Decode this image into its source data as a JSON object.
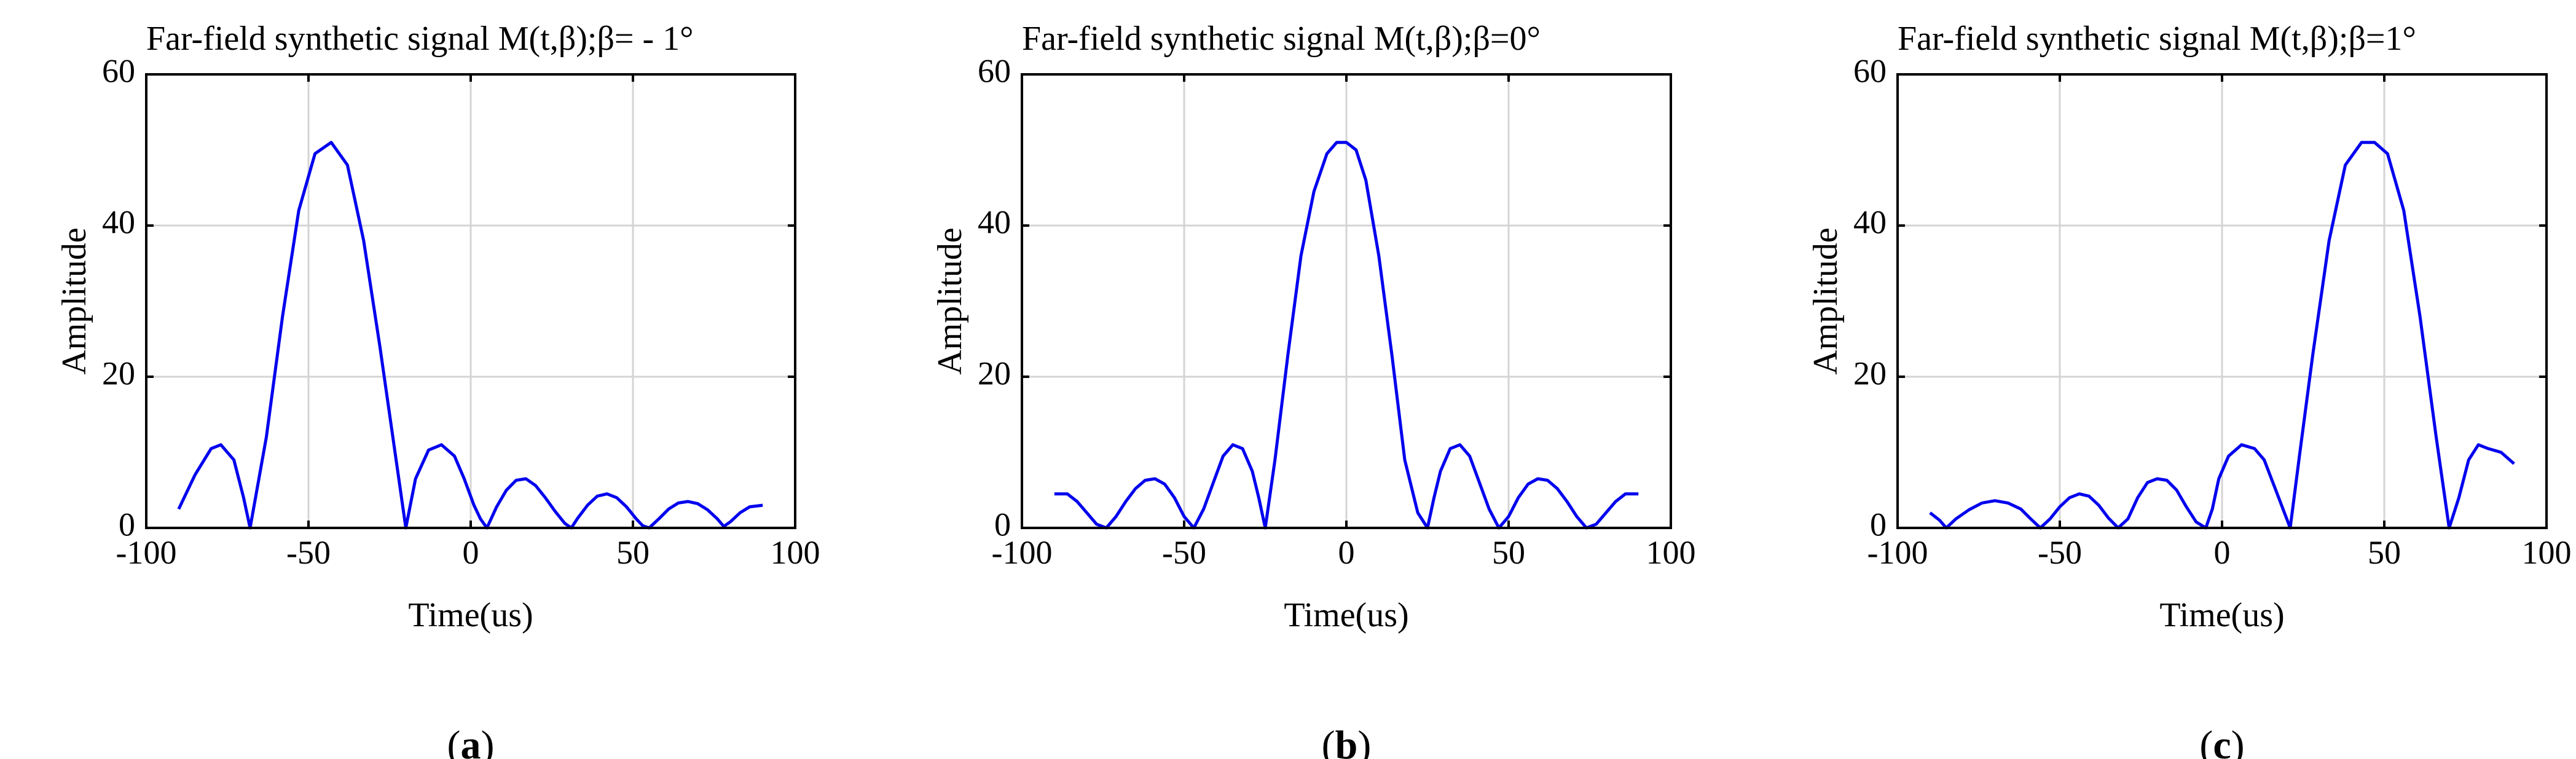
{
  "chart_data": [
    {
      "type": "line",
      "panel_label": "a",
      "title": "Far-field synthetic signal M(t,β);β= - 1°",
      "xlabel": "Time(us)",
      "ylabel": "Amplitude",
      "xlim": [
        -100,
        100
      ],
      "ylim": [
        0,
        60
      ],
      "xticks": [
        -100,
        -50,
        0,
        50,
        100
      ],
      "yticks": [
        0,
        20,
        40,
        60
      ],
      "grid": true,
      "series": [
        {
          "name": "M(t,β)",
          "color": "#0000ee",
          "x": [
            -90,
            -85,
            -80,
            -77,
            -73,
            -70,
            -68,
            -63,
            -58,
            -53,
            -48,
            -43,
            -38,
            -33,
            -28,
            -23,
            -20,
            -17,
            -13,
            -9,
            -5,
            -2,
            1,
            3,
            5,
            8,
            11,
            14,
            17,
            20,
            23,
            26,
            29,
            31,
            33,
            36,
            39,
            42,
            45,
            48,
            51,
            53,
            55,
            58,
            61,
            64,
            67,
            70,
            73,
            76,
            78,
            80,
            83,
            86,
            90
          ],
          "y": [
            2.5,
            7,
            10.5,
            11,
            9,
            4,
            0,
            12,
            28,
            42,
            49.5,
            51,
            48,
            38,
            24,
            9,
            0,
            6.5,
            10.3,
            11,
            9.5,
            6.5,
            3,
            1.2,
            0,
            2.8,
            5,
            6.3,
            6.5,
            5.6,
            4,
            2.2,
            0.6,
            0,
            1.3,
            3,
            4.2,
            4.5,
            4,
            2.8,
            1.2,
            0.3,
            0,
            1.2,
            2.5,
            3.3,
            3.5,
            3.2,
            2.4,
            1.2,
            0.2,
            0.8,
            2,
            2.8,
            3
          ]
        }
      ]
    },
    {
      "type": "line",
      "panel_label": "b",
      "title": "Far-field synthetic signal M(t,β);β=0°",
      "xlabel": "Time(us)",
      "ylabel": "Amplitude",
      "xlim": [
        -100,
        100
      ],
      "ylim": [
        0,
        60
      ],
      "xticks": [
        -100,
        -50,
        0,
        50,
        100
      ],
      "yticks": [
        0,
        20,
        40,
        60
      ],
      "grid": true,
      "series": [
        {
          "name": "M(t,β)",
          "color": "#0000ee",
          "x": [
            -90,
            -86,
            -83,
            -80,
            -77,
            -74,
            -71,
            -68,
            -65,
            -62,
            -59,
            -56,
            -53,
            -50,
            -47,
            -44,
            -41,
            -38,
            -35,
            -32,
            -29,
            -27,
            -25,
            -22,
            -18,
            -14,
            -10,
            -6,
            -3,
            0,
            3,
            6,
            10,
            14,
            18,
            22,
            25,
            27,
            29,
            32,
            35,
            38,
            41,
            44,
            47,
            50,
            53,
            56,
            59,
            62,
            65,
            68,
            71,
            74,
            77,
            80,
            83,
            86,
            90
          ],
          "y": [
            4.5,
            4.5,
            3.5,
            2,
            0.5,
            0,
            1.5,
            3.5,
            5.2,
            6.3,
            6.5,
            5.8,
            4,
            1.5,
            0,
            2.5,
            6,
            9.5,
            11,
            10.5,
            7.5,
            4,
            0,
            9,
            23,
            36,
            44.5,
            49.5,
            51,
            51,
            50,
            46,
            36,
            23,
            9,
            2,
            0,
            4,
            7.5,
            10.5,
            11,
            9.5,
            6,
            2.5,
            0,
            1.5,
            4,
            5.8,
            6.5,
            6.3,
            5.2,
            3.5,
            1.5,
            0,
            0.5,
            2,
            3.5,
            4.5,
            4.5
          ]
        }
      ]
    },
    {
      "type": "line",
      "panel_label": "c",
      "title": "Far-field synthetic signal M(t,β);β=1°",
      "xlabel": "Time(us)",
      "ylabel": "Amplitude",
      "xlim": [
        -100,
        100
      ],
      "ylim": [
        0,
        60
      ],
      "xticks": [
        -100,
        -50,
        0,
        50,
        100
      ],
      "yticks": [
        0,
        20,
        40,
        60
      ],
      "grid": true,
      "series": [
        {
          "name": "M(t,β)",
          "color": "#0000ee",
          "x": [
            -90,
            -87,
            -85,
            -82,
            -78,
            -74,
            -70,
            -66,
            -62,
            -59,
            -56,
            -53,
            -50,
            -47,
            -44,
            -41,
            -38,
            -35,
            -32,
            -29,
            -26,
            -23,
            -20,
            -17,
            -14,
            -11,
            -8,
            -5,
            -3,
            -1,
            2,
            6,
            10,
            13,
            17,
            21,
            24,
            28,
            33,
            38,
            43,
            47,
            51,
            56,
            61,
            66,
            70,
            73,
            76,
            79,
            82,
            86,
            90
          ],
          "y": [
            2,
            1,
            0,
            1.2,
            2.4,
            3.3,
            3.6,
            3.3,
            2.5,
            1.2,
            0,
            1.2,
            2.8,
            4,
            4.5,
            4.2,
            3,
            1.3,
            0,
            1.2,
            4,
            6,
            6.5,
            6.3,
            5,
            2.8,
            0.8,
            0,
            2.5,
            6.5,
            9.5,
            11,
            10.5,
            9,
            4.5,
            0,
            10,
            23,
            38,
            48,
            51,
            51,
            49.5,
            42,
            28,
            12,
            0,
            4,
            9,
            11,
            10.5,
            10,
            8.5
          ]
        }
      ]
    }
  ]
}
